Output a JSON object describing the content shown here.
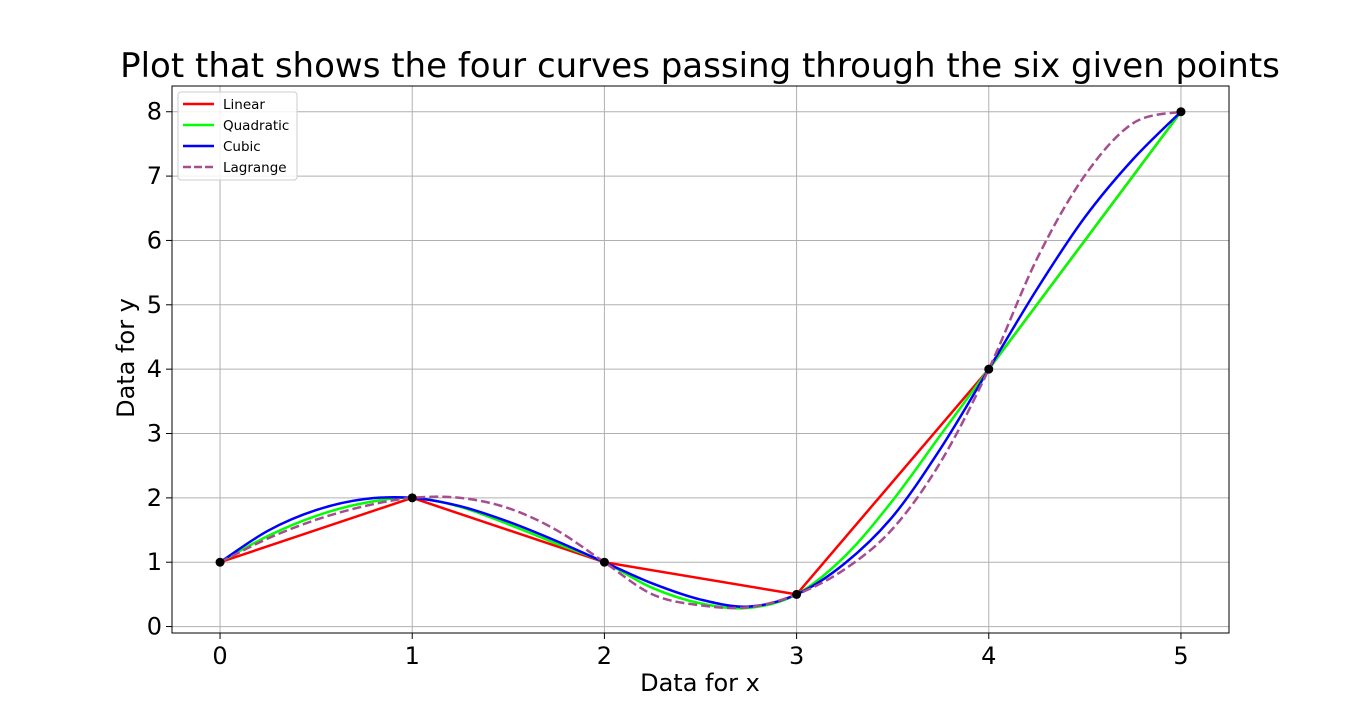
{
  "chart_data": {
    "type": "line",
    "title": "Plot that shows the four curves passing through the six given points",
    "xlabel": "Data for x",
    "ylabel": "Data for y",
    "xlim": [
      -0.25,
      5.25
    ],
    "ylim": [
      -0.1,
      8.4
    ],
    "x_ticks": [
      0,
      1,
      2,
      3,
      4,
      5
    ],
    "y_ticks": [
      0,
      1,
      2,
      3,
      4,
      5,
      6,
      7,
      8
    ],
    "grid": true,
    "legend_position": "top-left",
    "points": {
      "x": [
        0,
        1,
        2,
        3,
        4,
        5
      ],
      "y": [
        1,
        2,
        1,
        0.5,
        4,
        8
      ],
      "color": "#000000"
    },
    "series": [
      {
        "name": "Linear",
        "color": "#ff0000",
        "dashed": false,
        "x": [
          0,
          1,
          2,
          3,
          4,
          5
        ],
        "y": [
          1,
          2,
          1,
          0.5,
          4,
          8
        ]
      },
      {
        "name": "Quadratic",
        "color": "#00ff00",
        "dashed": false,
        "x": [
          0,
          0.25,
          0.5,
          0.75,
          1,
          1.25,
          1.5,
          1.75,
          2,
          2.25,
          2.5,
          2.75,
          3,
          3.25,
          3.5,
          3.75,
          4,
          4.25,
          4.5,
          4.75,
          5
        ],
        "y": [
          1,
          1.41,
          1.72,
          1.92,
          2,
          1.86,
          1.59,
          1.29,
          1,
          0.6,
          0.36,
          0.29,
          0.5,
          1.09,
          1.96,
          2.98,
          4,
          5,
          6,
          7,
          8
        ]
      },
      {
        "name": "Cubic",
        "color": "#0000ff",
        "dashed": false,
        "x": [
          0,
          0.25,
          0.5,
          0.75,
          1,
          1.25,
          1.5,
          1.75,
          2,
          2.25,
          2.5,
          2.75,
          3,
          3.25,
          3.5,
          3.75,
          4,
          4.25,
          4.5,
          4.75,
          5
        ],
        "y": [
          1,
          1.49,
          1.81,
          1.98,
          2,
          1.87,
          1.63,
          1.33,
          1,
          0.67,
          0.42,
          0.31,
          0.5,
          0.98,
          1.71,
          2.77,
          4,
          5.24,
          6.36,
          7.26,
          8
        ]
      },
      {
        "name": "Lagrange",
        "color": "#a64d8f",
        "dashed": true,
        "x": [
          0,
          0.25,
          0.5,
          0.75,
          1,
          1.25,
          1.5,
          1.75,
          2,
          2.25,
          2.5,
          2.75,
          3,
          3.25,
          3.5,
          3.75,
          4,
          4.25,
          4.5,
          4.75,
          5
        ],
        "y": [
          1,
          1.37,
          1.66,
          1.87,
          2,
          2,
          1.84,
          1.5,
          1,
          0.5,
          0.33,
          0.3,
          0.5,
          0.89,
          1.52,
          2.56,
          4,
          5.71,
          7.01,
          7.82,
          8
        ]
      }
    ]
  }
}
